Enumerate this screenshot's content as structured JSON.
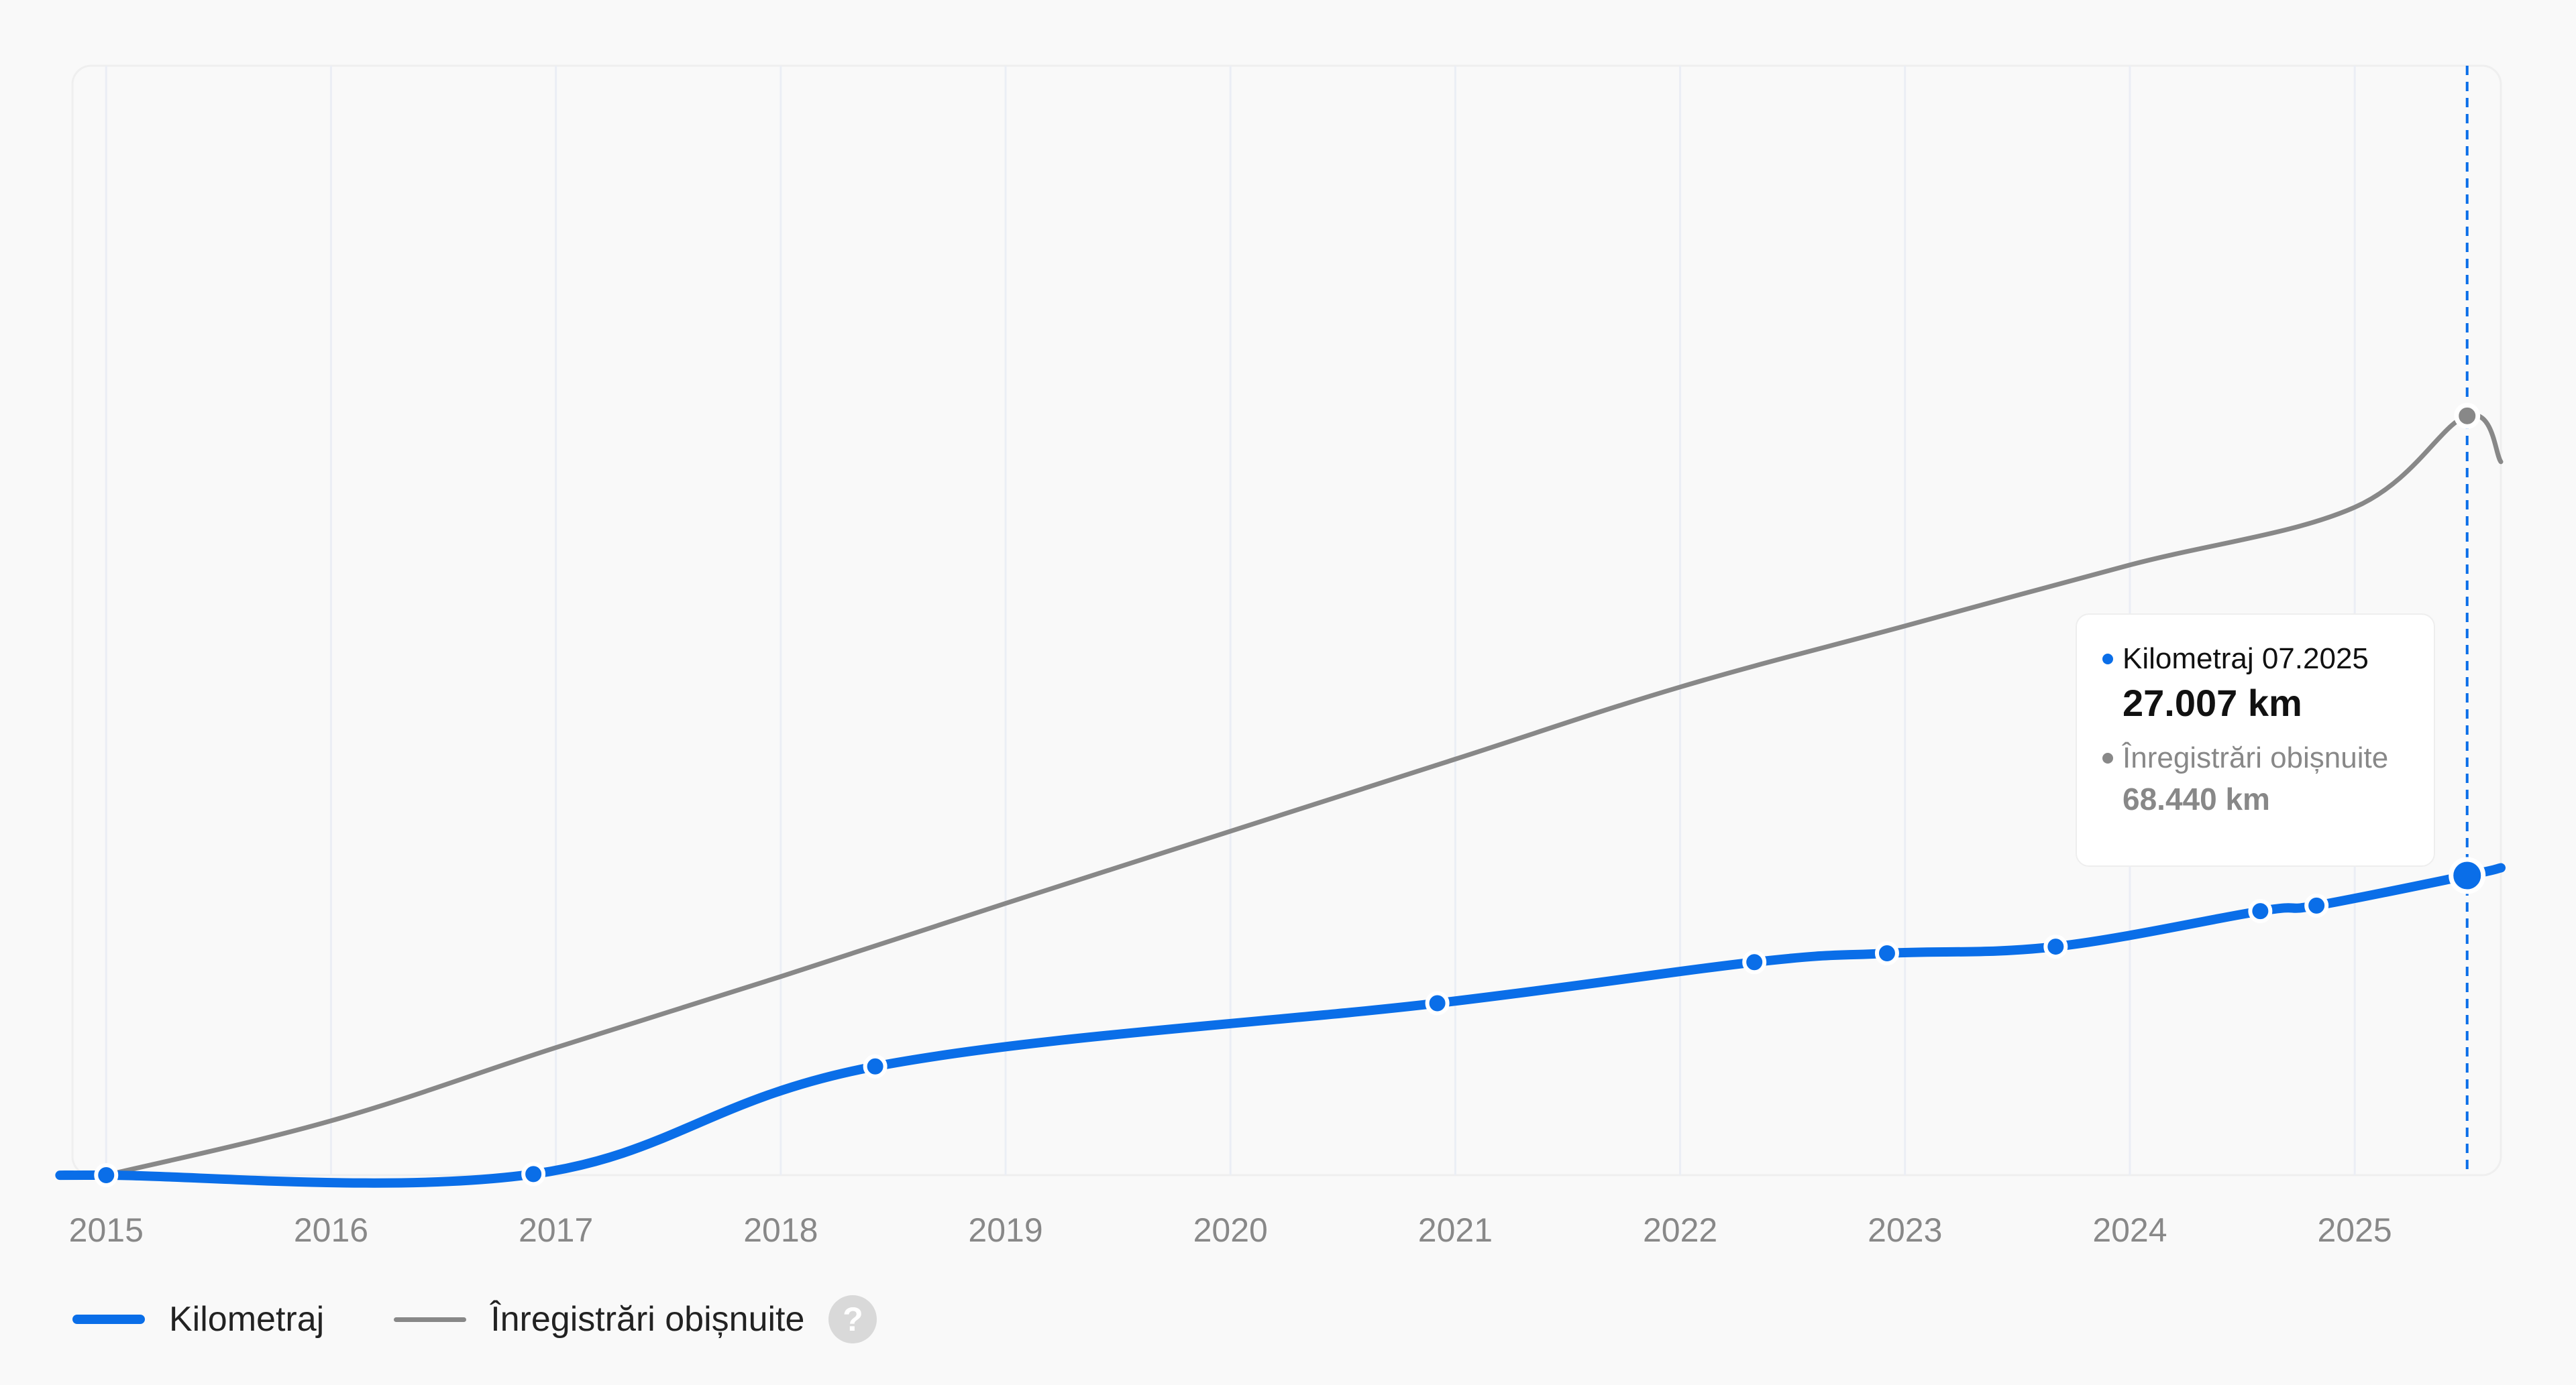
{
  "colors": {
    "mileage": "#0a6ee8",
    "typical": "#888888",
    "grid": "#ebeef5",
    "tick_text": "#888888",
    "cursor": "#0a6ee8"
  },
  "chart_data": {
    "type": "line",
    "x_unit": "year",
    "xlim": [
      2014.85,
      2025.65
    ],
    "ylim": [
      0,
      100000
    ],
    "xticks": [
      2015,
      2016,
      2017,
      2018,
      2019,
      2020,
      2021,
      2022,
      2023,
      2024,
      2025
    ],
    "grid": "vertical",
    "series": [
      {
        "name": "Kilometraj",
        "unit": "km",
        "smooth": true,
        "points": [
          {
            "x": 2014.85,
            "y": 0,
            "marker": false
          },
          {
            "x": 2015.0,
            "y": 0,
            "marker": true
          },
          {
            "x": 2016.9,
            "y": 100,
            "marker": true
          },
          {
            "x": 2018.42,
            "y": 9800,
            "marker": true
          },
          {
            "x": 2020.92,
            "y": 15500,
            "marker": true
          },
          {
            "x": 2022.33,
            "y": 19200,
            "marker": true
          },
          {
            "x": 2022.92,
            "y": 20000,
            "marker": true
          },
          {
            "x": 2023.67,
            "y": 20600,
            "marker": true
          },
          {
            "x": 2024.58,
            "y": 23800,
            "marker": true
          },
          {
            "x": 2024.83,
            "y": 24300,
            "marker": true
          },
          {
            "x": 2025.5,
            "y": 27007,
            "marker": true,
            "highlight": true
          },
          {
            "x": 2025.65,
            "y": 27700,
            "marker": false
          }
        ]
      },
      {
        "name": "Înregistrări obișnuite",
        "unit": "km",
        "smooth": true,
        "points": [
          {
            "x": 2015.0,
            "y": 0,
            "marker": false
          },
          {
            "x": 2016.0,
            "y": 4900,
            "marker": false
          },
          {
            "x": 2017.0,
            "y": 11500,
            "marker": false
          },
          {
            "x": 2018.0,
            "y": 17900,
            "marker": false
          },
          {
            "x": 2019.0,
            "y": 24500,
            "marker": false
          },
          {
            "x": 2020.0,
            "y": 31000,
            "marker": false
          },
          {
            "x": 2021.0,
            "y": 37500,
            "marker": false
          },
          {
            "x": 2022.0,
            "y": 44000,
            "marker": false
          },
          {
            "x": 2023.0,
            "y": 49500,
            "marker": false
          },
          {
            "x": 2024.0,
            "y": 55000,
            "marker": false
          },
          {
            "x": 2025.0,
            "y": 60200,
            "marker": false
          },
          {
            "x": 2025.5,
            "y": 68440,
            "marker": true,
            "highlight": true
          },
          {
            "x": 2025.65,
            "y": 64300,
            "marker": false
          }
        ]
      }
    ],
    "cursor_x": 2025.5,
    "tooltip": {
      "series1_label": "Kilometraj 07.2025",
      "series1_value": "27.007 km",
      "series2_label": "Înregistrări obișnuite",
      "series2_value": "68.440 km"
    },
    "legend": [
      {
        "label": "Kilometraj",
        "series": 0
      },
      {
        "label": "Înregistrări obișnuite",
        "series": 1
      }
    ]
  },
  "legend_help_icon": "question-mark-icon",
  "legend_help_glyph": "?"
}
